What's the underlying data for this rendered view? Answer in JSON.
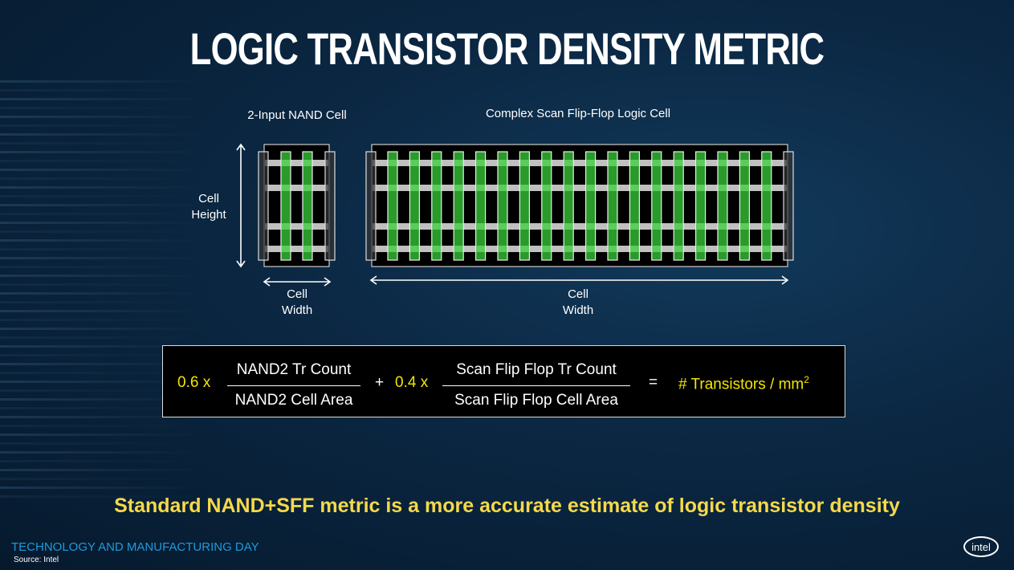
{
  "title": "LOGIC TRANSISTOR DENSITY METRIC",
  "diagram": {
    "nand_label": "2-Input NAND Cell",
    "sff_label": "Complex Scan Flip-Flop Logic Cell",
    "cell_height_label": [
      "Cell",
      "Height"
    ],
    "nand_width_label": [
      "Cell",
      "Width"
    ],
    "sff_width_label": [
      "Cell",
      "Width"
    ],
    "nand_gates": 2,
    "sff_gates": 18,
    "colors": {
      "gate": "#2a9a2a",
      "gate_overlap": "#5ccc5c",
      "rail": "#c0c0c0",
      "cell_bg": "#000000"
    }
  },
  "formula": {
    "coef1": "0.6 x",
    "num1": "NAND2 Tr Count",
    "den1": "NAND2 Cell Area",
    "plus": "+",
    "coef2": "0.4 x",
    "num2": "Scan Flip Flop Tr Count",
    "den2": "Scan Flip Flop Cell Area",
    "equals": "=",
    "result": "# Transistors / mm",
    "result_sup": "2"
  },
  "tagline": "Standard NAND+SFF metric is a more accurate estimate of logic transistor density",
  "footer": "TECHNOLOGY AND MANUFACTURING DAY",
  "source": "Source: Intel",
  "logo": "intel"
}
